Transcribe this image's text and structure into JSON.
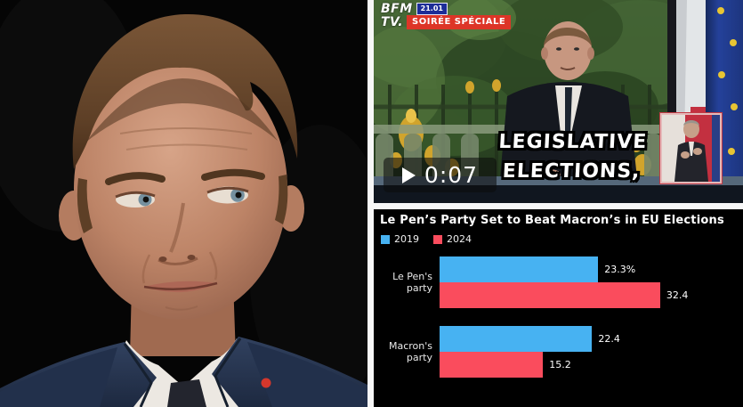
{
  "left_photo": {
    "description": "Close-up portrait of Emmanuel Macron in a navy suit, white shirt and dark tie with a red lapel pin, against a black background"
  },
  "video": {
    "channel": {
      "line1": "BFM",
      "line2": "TV."
    },
    "time_badge": "21.01",
    "program_badge": "SOIRÉE SPÉCIALE",
    "play_time": "0:07",
    "caption_lines": {
      "0": "LEGISLATIVE",
      "1": "ELECTIONS,"
    },
    "colors": {
      "time_badge_bg": "#1c2d97",
      "program_badge_bg": "#dd3527"
    },
    "scene_description": "Emmanuel Macron speaking at a desk outdoors in front of green foliage, gilded fence ornaments, French and EU flags, with a sign-language interpreter inset"
  },
  "chart_data": {
    "type": "bar",
    "orientation": "horizontal",
    "title": "Le Pen’s Party Set to Beat Macron’s in EU Elections",
    "categories": {
      "0": "Le Pen's party",
      "1": "Macron's party"
    },
    "series": [
      {
        "name": "2019",
        "color": "#47b2f2",
        "values": {
          "0": 23.3,
          "1": 22.4
        }
      },
      {
        "name": "2024",
        "color": "#fa4c5d",
        "values": {
          "0": 32.4,
          "1": 15.2
        }
      }
    ],
    "value_labels": {
      "s2019": {
        "0": "23.3%",
        "1": "22.4"
      },
      "s2024": {
        "0": "32.4",
        "1": "15.2"
      }
    },
    "xlim": [
      0,
      40
    ],
    "legend_position": "top-left",
    "background": "#000000",
    "text_color": "#ffffff",
    "grid": false
  }
}
